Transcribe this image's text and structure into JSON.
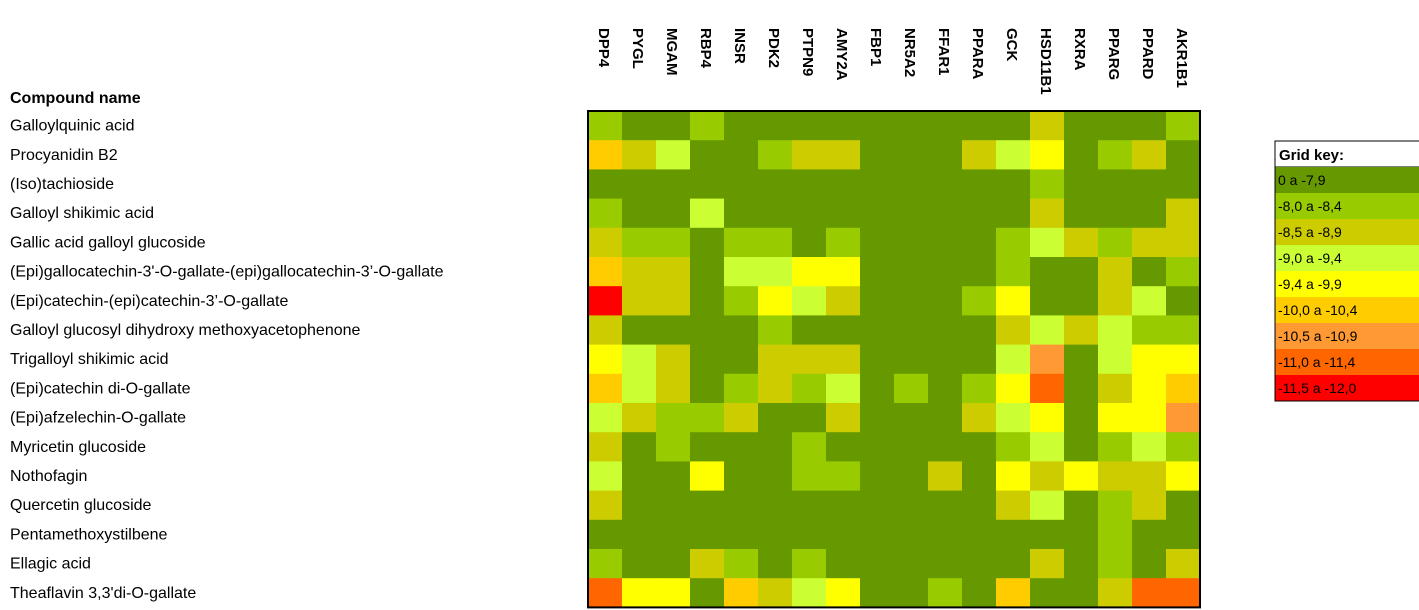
{
  "chart_data": {
    "type": "heatmap",
    "row_header": "Compound name",
    "rows": [
      "Galloylquinic acid",
      "Procyanidin B2",
      "(Iso)tachioside",
      "Galloyl shikimic acid",
      "Gallic acid galloyl glucoside",
      "(Epi)gallocatechin-3'-O-gallate-(epi)gallocatechin-3’-O-gallate",
      "(Epi)catechin-(epi)catechin-3’-O-gallate",
      "Galloyl glucosyl dihydroxy methoxyacetophenone",
      "Trigalloyl shikimic acid",
      "(Epi)catechin di-O-gallate",
      "(Epi)afzelechin-O-gallate",
      "Myricetin glucoside",
      "Nothofagin",
      "Quercetin glucoside",
      "Pentamethoxystilbene",
      "Ellagic acid",
      "Theaflavin 3,3'di-O-gallate"
    ],
    "columns": [
      "DPP4",
      "PYGL",
      "MGAM",
      "RBP4",
      "INSR",
      "PDK2",
      "PTPN9",
      "AMY2A",
      "FBP1",
      "NR5A2",
      "FFAR1",
      "PPARA",
      "GCK",
      "HSD11B1",
      "RXRA",
      "PPARG",
      "PPARD",
      "AKR1B1"
    ],
    "matrix": [
      [
        1,
        0,
        0,
        1,
        0,
        0,
        0,
        0,
        0,
        0,
        0,
        0,
        0,
        2,
        0,
        0,
        0,
        1
      ],
      [
        5,
        2,
        3,
        0,
        0,
        1,
        2,
        2,
        0,
        0,
        0,
        2,
        3,
        4,
        0,
        1,
        2,
        0
      ],
      [
        0,
        0,
        0,
        0,
        0,
        0,
        0,
        0,
        0,
        0,
        0,
        0,
        0,
        1,
        0,
        0,
        0,
        0
      ],
      [
        1,
        0,
        0,
        3,
        0,
        0,
        0,
        0,
        0,
        0,
        0,
        0,
        0,
        2,
        0,
        0,
        0,
        2
      ],
      [
        2,
        1,
        1,
        0,
        1,
        1,
        0,
        1,
        0,
        0,
        0,
        0,
        1,
        3,
        2,
        1,
        2,
        2
      ],
      [
        5,
        2,
        2,
        0,
        3,
        3,
        4,
        4,
        0,
        0,
        0,
        0,
        1,
        0,
        0,
        2,
        0,
        1
      ],
      [
        8,
        2,
        2,
        0,
        1,
        4,
        3,
        2,
        0,
        0,
        0,
        1,
        4,
        0,
        0,
        2,
        3,
        0
      ],
      [
        2,
        0,
        0,
        0,
        0,
        1,
        0,
        0,
        0,
        0,
        0,
        0,
        2,
        3,
        2,
        3,
        1,
        1
      ],
      [
        4,
        3,
        2,
        0,
        0,
        2,
        2,
        2,
        0,
        0,
        0,
        0,
        3,
        6,
        0,
        3,
        4,
        4
      ],
      [
        5,
        3,
        2,
        0,
        1,
        2,
        1,
        3,
        0,
        1,
        0,
        1,
        4,
        7,
        0,
        2,
        4,
        5
      ],
      [
        3,
        2,
        1,
        1,
        2,
        0,
        0,
        2,
        0,
        0,
        0,
        2,
        3,
        4,
        0,
        4,
        4,
        6
      ],
      [
        2,
        0,
        1,
        0,
        0,
        0,
        1,
        0,
        0,
        0,
        0,
        0,
        1,
        3,
        0,
        1,
        3,
        1
      ],
      [
        3,
        0,
        0,
        4,
        0,
        0,
        1,
        1,
        0,
        0,
        2,
        0,
        4,
        2,
        4,
        2,
        2,
        4
      ],
      [
        2,
        0,
        0,
        0,
        0,
        0,
        0,
        0,
        0,
        0,
        0,
        0,
        2,
        3,
        0,
        1,
        2,
        0
      ],
      [
        0,
        0,
        0,
        0,
        0,
        0,
        0,
        0,
        0,
        0,
        0,
        0,
        0,
        0,
        0,
        1,
        0,
        0
      ],
      [
        1,
        0,
        0,
        2,
        1,
        0,
        1,
        0,
        0,
        0,
        0,
        0,
        0,
        2,
        0,
        1,
        0,
        2
      ],
      [
        7,
        4,
        4,
        0,
        5,
        2,
        3,
        4,
        0,
        0,
        1,
        0,
        5,
        0,
        0,
        2,
        7,
        7
      ]
    ],
    "legend": {
      "title": "Grid key:",
      "bins": [
        {
          "label": "0 a -7,9",
          "color": "#669900"
        },
        {
          "label": "-8,0 a -8,4",
          "color": "#99CC00"
        },
        {
          "label": "-8,5 a -8,9",
          "color": "#CCCC00"
        },
        {
          "label": "-9,0 a -9,4",
          "color": "#CCFF33"
        },
        {
          "label": "-9,4 a -9,9",
          "color": "#FFFF00"
        },
        {
          "label": "-10,0 a -10,4",
          "color": "#FFCC00"
        },
        {
          "label": "-10,5 a -10,9",
          "color": "#FF9933"
        },
        {
          "label": "-11,0 a -11,4",
          "color": "#FF6600"
        },
        {
          "label": "-11,5 a -12,0",
          "color": "#FF0000"
        }
      ],
      "placement": "right"
    }
  }
}
